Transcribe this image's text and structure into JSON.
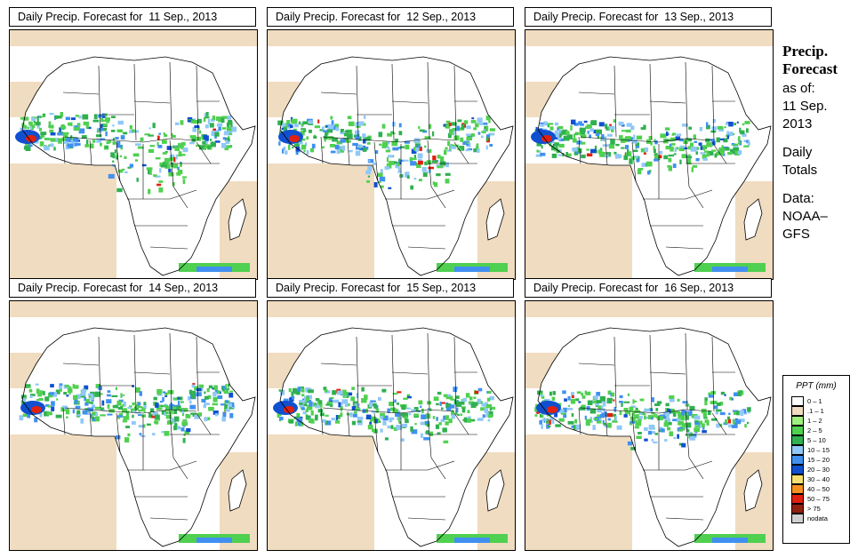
{
  "panels": [
    {
      "title": "Daily Precip. Forecast for  11 Sep., 2013",
      "variant": 0
    },
    {
      "title": "Daily Precip. Forecast for  12 Sep., 2013",
      "variant": 1
    },
    {
      "title": "Daily Precip. Forecast for  13 Sep., 2013",
      "variant": 2
    },
    {
      "title": "Daily Precip. Forecast for  14 Sep., 2013",
      "variant": 3
    },
    {
      "title": "Daily Precip. Forecast for  15 Sep., 2013",
      "variant": 4
    },
    {
      "title": "Daily Precip. Forecast for  16 Sep., 2013",
      "variant": 5
    }
  ],
  "side": {
    "heading1": "Precip.",
    "heading2": "Forecast",
    "asof": "as of:",
    "date1": "11 Sep.",
    "date2": "2013",
    "daily1": "Daily",
    "daily2": "Totals",
    "data1": "Data:",
    "data2": "NOAA–",
    "data3": "GFS"
  },
  "legend": {
    "title": "PPT (mm)",
    "items": [
      {
        "label": "0 – 1",
        "color": "#ffffff"
      },
      {
        "label": ".1 – 1",
        "color": "#f0dcc0"
      },
      {
        "label": "1 – 2",
        "color": "#a0f080"
      },
      {
        "label": "2 – 5",
        "color": "#50d050"
      },
      {
        "label": "5 – 10",
        "color": "#30b050"
      },
      {
        "label": "10 – 15",
        "color": "#90c8f8"
      },
      {
        "label": "15 – 20",
        "color": "#4090f0"
      },
      {
        "label": "20 – 30",
        "color": "#1050d0"
      },
      {
        "label": "30 – 40",
        "color": "#f8e070"
      },
      {
        "label": "40 – 50",
        "color": "#f89020"
      },
      {
        "label": "50 – 75",
        "color": "#e02010"
      },
      {
        "label": "> 75",
        "color": "#902010"
      },
      {
        "label": "nodata",
        "color": "#d0d0d0"
      }
    ]
  }
}
